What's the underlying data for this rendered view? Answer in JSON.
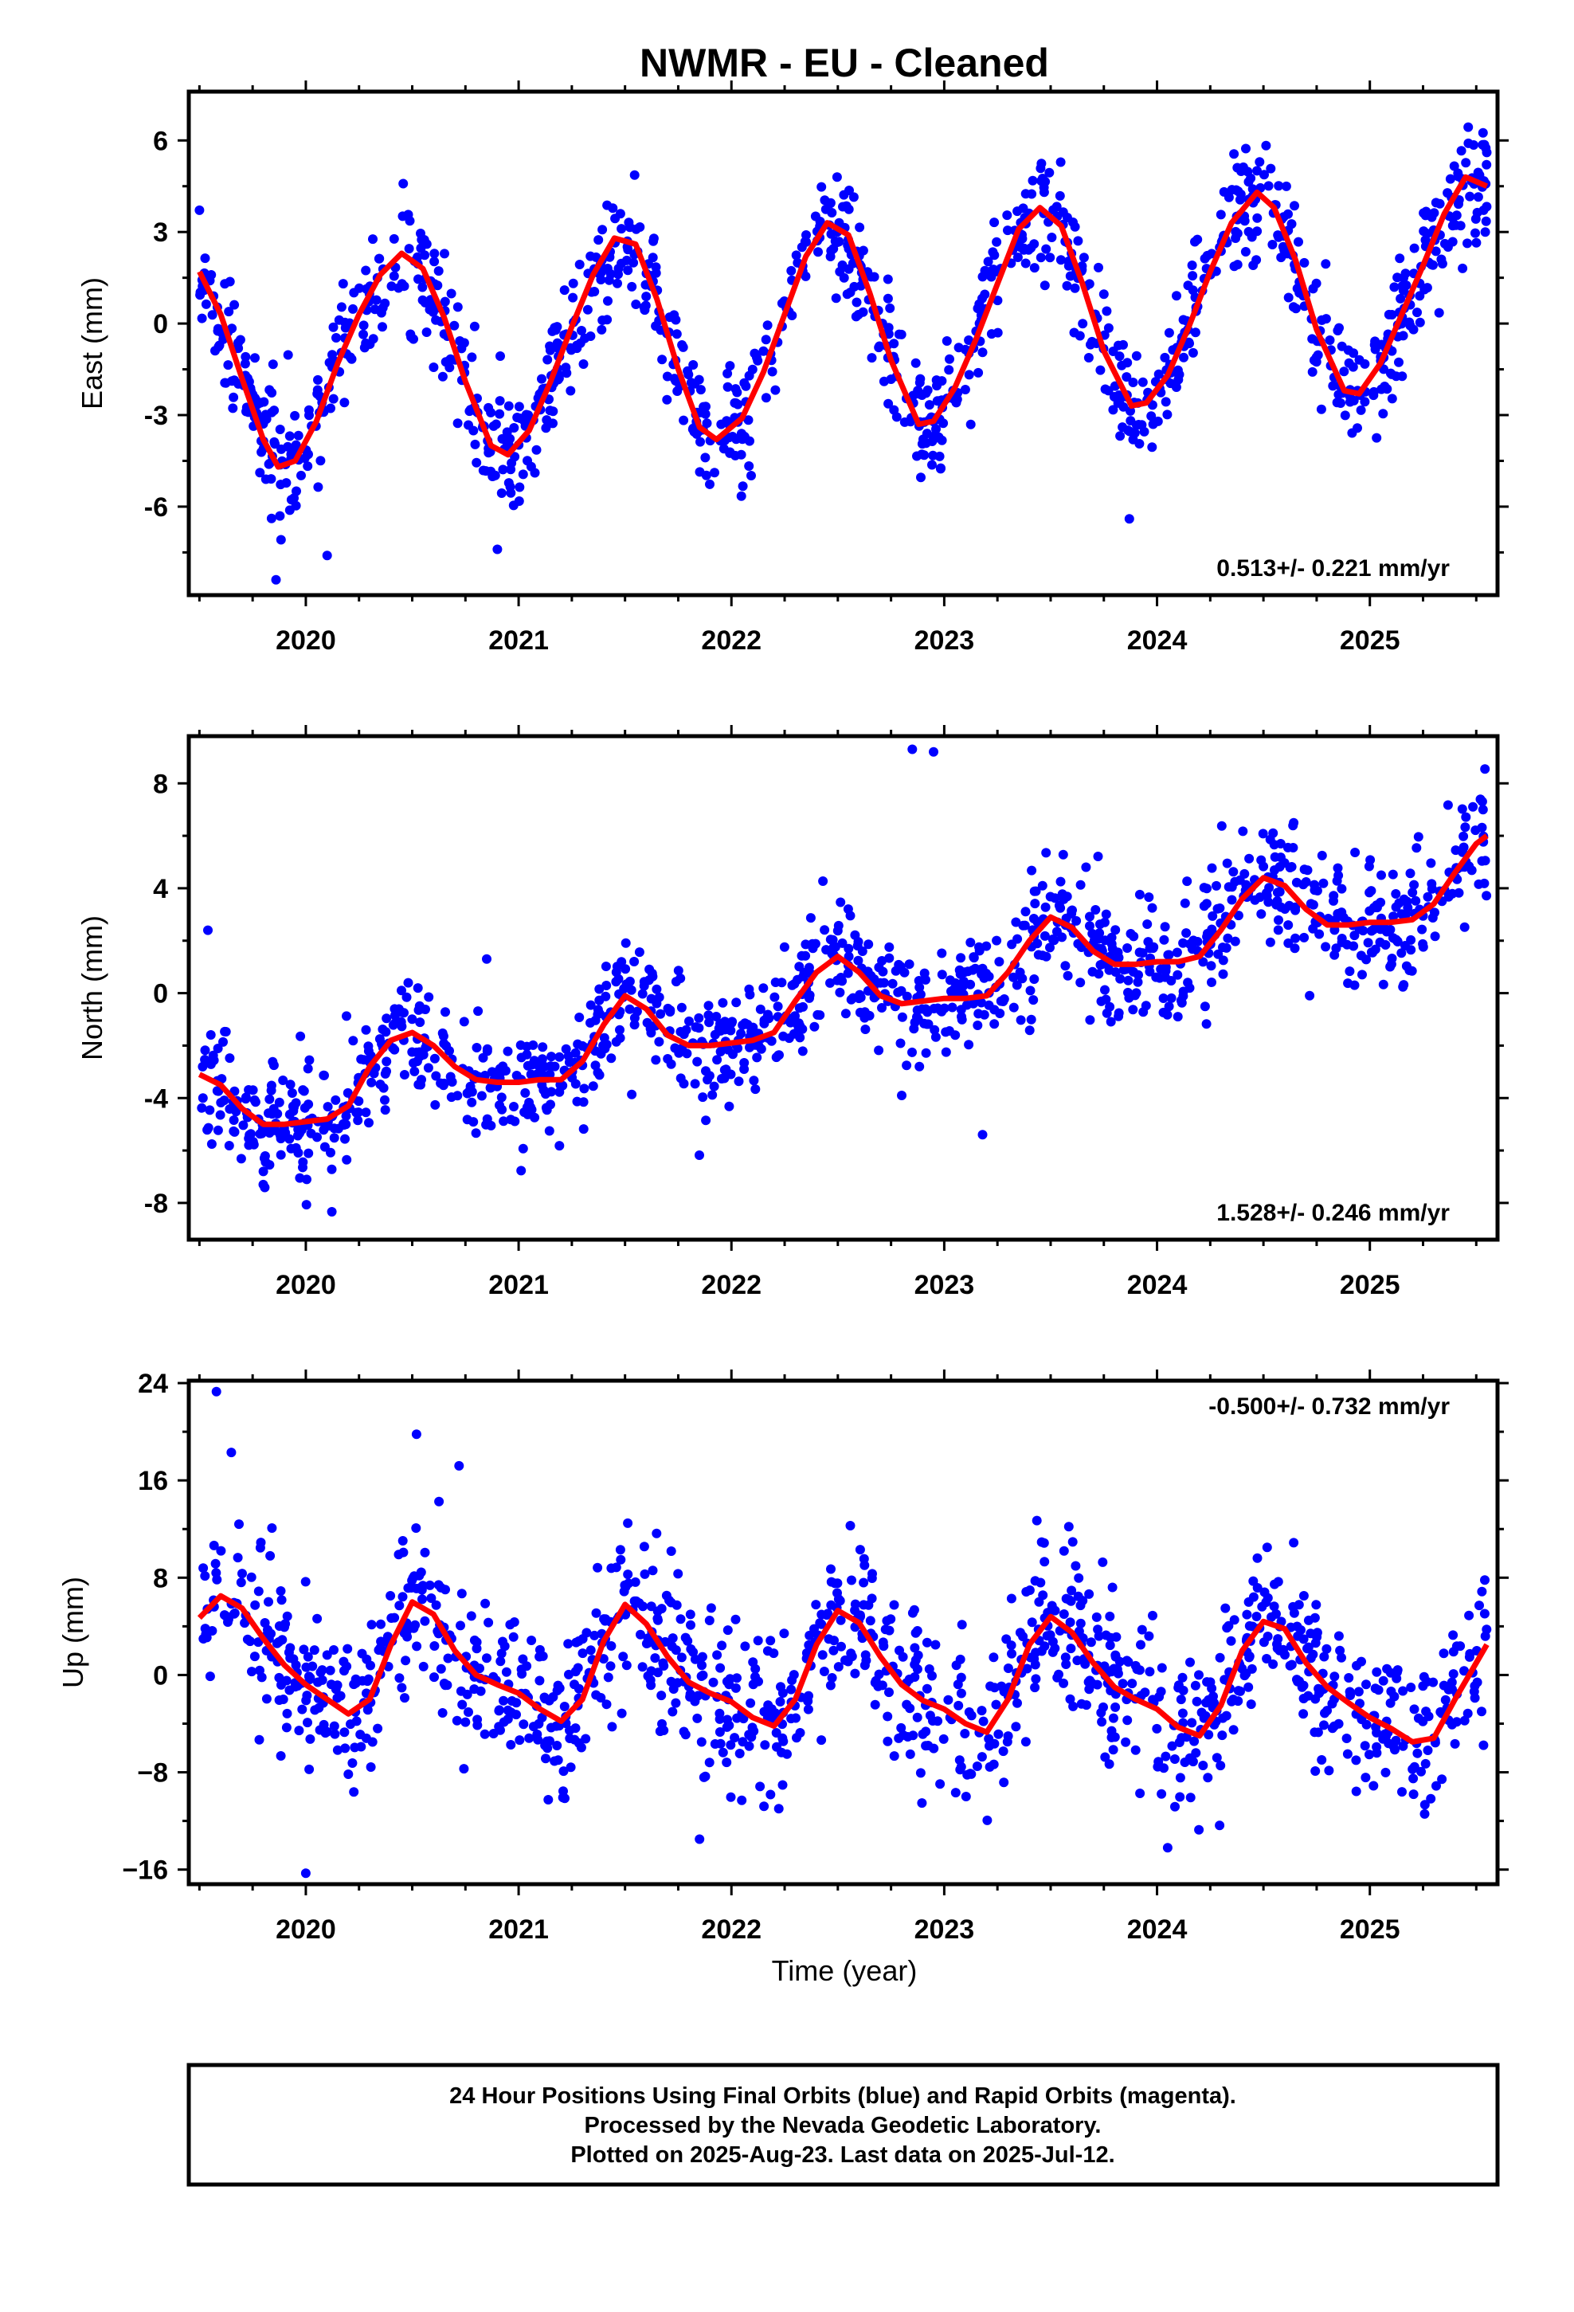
{
  "title": "NWMR  - EU - Cleaned",
  "xlabel": "Time (year)",
  "footer": {
    "line1": "24 Hour Positions Using Final Orbits (blue) and Rapid Orbits (magenta).",
    "line2": "Processed by the Nevada Geodetic Laboratory.",
    "line3": "Plotted on 2025-Aug-23. Last data on 2025-Jul-12."
  },
  "colors": {
    "points": "#0000ff",
    "fit": "#ff0000",
    "frame": "#000000"
  },
  "chart_data": [
    {
      "type": "scatter",
      "ylabel": "East (mm)",
      "rate": "0.513+/- 0.221 mm/yr",
      "xlim": [
        2019.45,
        2025.6
      ],
      "ylim": [
        -8.9,
        7.6
      ],
      "xticks": [
        2020,
        2021,
        2022,
        2023,
        2024,
        2025
      ],
      "yticks": [
        6,
        3,
        0,
        -3,
        -6
      ],
      "ytick_labels": [
        "6",
        "3",
        "0",
        "-3",
        "-6"
      ],
      "fit_x": [
        2019.5,
        2019.6,
        2019.7,
        2019.8,
        2019.87,
        2019.95,
        2020.05,
        2020.15,
        2020.25,
        2020.35,
        2020.45,
        2020.55,
        2020.65,
        2020.75,
        2020.87,
        2020.95,
        2021.05,
        2021.15,
        2021.25,
        2021.35,
        2021.45,
        2021.55,
        2021.65,
        2021.75,
        2021.85,
        2021.93,
        2022.05,
        2022.15,
        2022.25,
        2022.35,
        2022.45,
        2022.55,
        2022.65,
        2022.75,
        2022.88,
        2022.95,
        2023.05,
        2023.15,
        2023.25,
        2023.35,
        2023.45,
        2023.55,
        2023.65,
        2023.75,
        2023.88,
        2023.95,
        2024.05,
        2024.15,
        2024.25,
        2024.35,
        2024.47,
        2024.55,
        2024.65,
        2024.75,
        2024.88,
        2024.95,
        2025.05,
        2025.15,
        2025.25,
        2025.35,
        2025.45,
        2025.55
      ],
      "fit_y": [
        1.7,
        0.3,
        -1.8,
        -3.8,
        -4.7,
        -4.5,
        -3.2,
        -1.3,
        0.3,
        1.6,
        2.3,
        1.8,
        0.2,
        -1.9,
        -4.0,
        -4.3,
        -3.5,
        -1.9,
        -0.1,
        1.6,
        2.8,
        2.6,
        0.8,
        -1.5,
        -3.4,
        -3.8,
        -3.1,
        -1.6,
        0.3,
        2.2,
        3.3,
        2.9,
        1.0,
        -1.2,
        -3.3,
        -3.2,
        -2.1,
        -0.5,
        1.3,
        3.1,
        3.8,
        3.2,
        1.3,
        -0.9,
        -2.7,
        -2.6,
        -1.7,
        -0.1,
        1.7,
        3.3,
        4.3,
        3.8,
        2.1,
        -0.2,
        -2.2,
        -2.3,
        -1.3,
        0.3,
        1.9,
        3.6,
        4.8,
        4.5
      ],
      "scatter": {
        "n": 1200,
        "seed": 11,
        "noise": 1.0,
        "outliers": [
          [
            2019.86,
            -8.4
          ],
          [
            2020.1,
            -7.6
          ],
          [
            2020.9,
            -7.4
          ],
          [
            2023.87,
            -6.4
          ]
        ]
      }
    },
    {
      "type": "scatter",
      "ylabel": "North (mm)",
      "rate": "1.528+/- 0.246 mm/yr",
      "xlim": [
        2019.45,
        2025.6
      ],
      "ylim": [
        -9.4,
        9.8
      ],
      "xticks": [
        2020,
        2021,
        2022,
        2023,
        2024,
        2025
      ],
      "yticks": [
        8,
        4,
        0,
        -4,
        -8
      ],
      "ytick_labels": [
        "8",
        "4",
        "0",
        "-4",
        "-8"
      ],
      "fit_x": [
        2019.5,
        2019.6,
        2019.7,
        2019.8,
        2019.9,
        2020.0,
        2020.1,
        2020.2,
        2020.3,
        2020.4,
        2020.5,
        2020.6,
        2020.7,
        2020.8,
        2020.9,
        2021.0,
        2021.1,
        2021.2,
        2021.3,
        2021.4,
        2021.5,
        2021.6,
        2021.7,
        2021.8,
        2021.9,
        2022.0,
        2022.1,
        2022.2,
        2022.3,
        2022.4,
        2022.5,
        2022.6,
        2022.7,
        2022.8,
        2022.9,
        2023.0,
        2023.1,
        2023.2,
        2023.3,
        2023.4,
        2023.5,
        2023.6,
        2023.7,
        2023.8,
        2023.9,
        2024.0,
        2024.1,
        2024.2,
        2024.3,
        2024.4,
        2024.5,
        2024.6,
        2024.7,
        2024.8,
        2024.9,
        2025.0,
        2025.1,
        2025.2,
        2025.3,
        2025.4,
        2025.5,
        2025.55
      ],
      "fit_y": [
        -3.1,
        -3.5,
        -4.4,
        -5.0,
        -5.0,
        -4.9,
        -4.8,
        -4.3,
        -2.8,
        -1.8,
        -1.5,
        -2.0,
        -2.8,
        -3.3,
        -3.4,
        -3.4,
        -3.3,
        -3.3,
        -2.6,
        -1.2,
        -0.1,
        -0.6,
        -1.6,
        -2.0,
        -2.0,
        -1.9,
        -1.8,
        -1.5,
        -0.3,
        0.8,
        1.4,
        0.8,
        -0.1,
        -0.4,
        -0.3,
        -0.2,
        -0.2,
        -0.1,
        0.8,
        2.0,
        2.9,
        2.5,
        1.6,
        1.1,
        1.1,
        1.2,
        1.2,
        1.4,
        2.4,
        3.6,
        4.4,
        4.1,
        3.2,
        2.6,
        2.6,
        2.7,
        2.7,
        2.8,
        3.4,
        4.6,
        5.7,
        6.0
      ],
      "scatter": {
        "n": 1200,
        "seed": 23,
        "noise": 1.15,
        "outliers": [
          [
            2019.54,
            2.4
          ],
          [
            2022.85,
            9.3
          ],
          [
            2022.95,
            9.2
          ],
          [
            2023.18,
            -5.4
          ],
          [
            2020.85,
            1.3
          ],
          [
            2022.8,
            -3.9
          ]
        ]
      }
    },
    {
      "type": "scatter",
      "ylabel": "Up (mm)",
      "rate": "-0.500+/- 0.732 mm/yr",
      "xlim": [
        2019.45,
        2025.6
      ],
      "ylim": [
        -17.2,
        24.2
      ],
      "xticks": [
        2020,
        2021,
        2022,
        2023,
        2024,
        2025
      ],
      "yticks": [
        24,
        16,
        8,
        0,
        -8,
        -16
      ],
      "ytick_labels": [
        "24",
        "16",
        "8",
        "0",
        "−8",
        "−16"
      ],
      "fit_x": [
        2019.5,
        2019.6,
        2019.7,
        2019.8,
        2019.9,
        2020.0,
        2020.1,
        2020.2,
        2020.3,
        2020.4,
        2020.5,
        2020.6,
        2020.7,
        2020.8,
        2020.9,
        2021.0,
        2021.1,
        2021.2,
        2021.3,
        2021.4,
        2021.5,
        2021.6,
        2021.7,
        2021.8,
        2021.9,
        2022.0,
        2022.1,
        2022.2,
        2022.3,
        2022.4,
        2022.5,
        2022.6,
        2022.7,
        2022.8,
        2022.9,
        2023.0,
        2023.1,
        2023.2,
        2023.3,
        2023.4,
        2023.5,
        2023.6,
        2023.7,
        2023.8,
        2023.9,
        2024.0,
        2024.1,
        2024.2,
        2024.3,
        2024.4,
        2024.5,
        2024.6,
        2024.7,
        2024.8,
        2024.9,
        2025.0,
        2025.1,
        2025.2,
        2025.3,
        2025.4,
        2025.5,
        2025.55
      ],
      "fit_y": [
        4.7,
        6.5,
        5.5,
        3.0,
        0.8,
        -0.8,
        -2.0,
        -3.2,
        -2.0,
        2.5,
        6.0,
        5.0,
        2.0,
        0.0,
        -0.8,
        -1.5,
        -2.8,
        -3.8,
        -2.0,
        2.8,
        5.8,
        4.2,
        1.5,
        -0.6,
        -1.5,
        -2.2,
        -3.5,
        -4.2,
        -2.0,
        2.5,
        5.3,
        4.3,
        1.5,
        -0.8,
        -2.1,
        -2.8,
        -4.0,
        -4.7,
        -2.0,
        2.5,
        4.8,
        3.5,
        1.0,
        -1.0,
        -2.0,
        -2.8,
        -4.3,
        -5.0,
        -2.5,
        2.0,
        4.4,
        3.8,
        1.0,
        -1.0,
        -2.3,
        -3.5,
        -4.4,
        -5.5,
        -5.2,
        -2.0,
        1.0,
        2.5
      ],
      "scatter": {
        "n": 1200,
        "seed": 37,
        "noise": 3.3,
        "outliers": [
          [
            2019.58,
            23.3
          ],
          [
            2020.52,
            19.8
          ],
          [
            2019.65,
            18.3
          ],
          [
            2020.0,
            -16.3
          ],
          [
            2020.72,
            17.2
          ],
          [
            2021.85,
            -13.5
          ],
          [
            2024.05,
            -14.2
          ]
        ]
      }
    }
  ]
}
